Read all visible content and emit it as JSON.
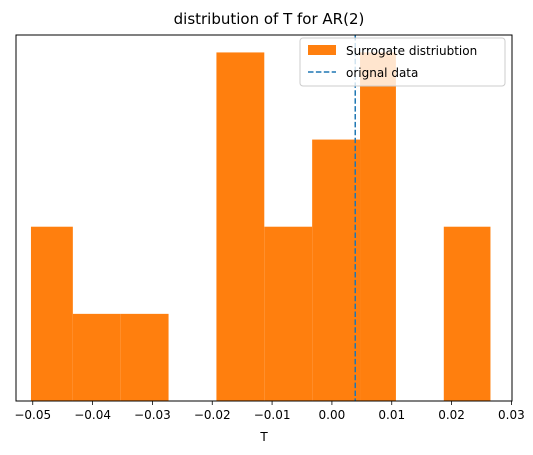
{
  "chart_data": {
    "type": "bar",
    "subtype": "histogram",
    "title": "distribution of T for AR(2)",
    "xlabel": "T",
    "ylabel": "",
    "xlim": [
      -0.0528,
      0.0301
    ],
    "ylim": [
      0,
      4.2
    ],
    "y_ticks_shown": false,
    "grid": false,
    "legend_position": "top-right",
    "x_ticks": [
      -0.05,
      -0.04,
      -0.03,
      -0.02,
      -0.01,
      0.0,
      0.01,
      0.02,
      0.03
    ],
    "x_tick_labels": [
      "−0.05",
      "−0.04",
      "−0.03",
      "−0.02",
      "−0.01",
      "0.00",
      "0.01",
      "0.02",
      "0.03"
    ],
    "bins": [
      {
        "left": -0.0503,
        "right": -0.0433,
        "count": 2
      },
      {
        "left": -0.0433,
        "right": -0.0353,
        "count": 1
      },
      {
        "left": -0.0353,
        "right": -0.0273,
        "count": 1
      },
      {
        "left": -0.0273,
        "right": -0.0193,
        "count": 0
      },
      {
        "left": -0.0193,
        "right": -0.0113,
        "count": 4
      },
      {
        "left": -0.0113,
        "right": -0.0033,
        "count": 2
      },
      {
        "left": -0.0033,
        "right": 0.0047,
        "count": 3
      },
      {
        "left": 0.0047,
        "right": 0.0107,
        "count": 4
      },
      {
        "left": 0.0107,
        "right": 0.0187,
        "count": 0
      },
      {
        "left": 0.0187,
        "right": 0.0265,
        "count": 2
      }
    ],
    "original_value": 0.0039,
    "series": [
      {
        "name": "Surrogate distriubtion",
        "color": "#ff7f0e",
        "kind": "histogram"
      },
      {
        "name": "orignal data",
        "color": "#1f77b4",
        "kind": "dashed-vline"
      }
    ]
  }
}
